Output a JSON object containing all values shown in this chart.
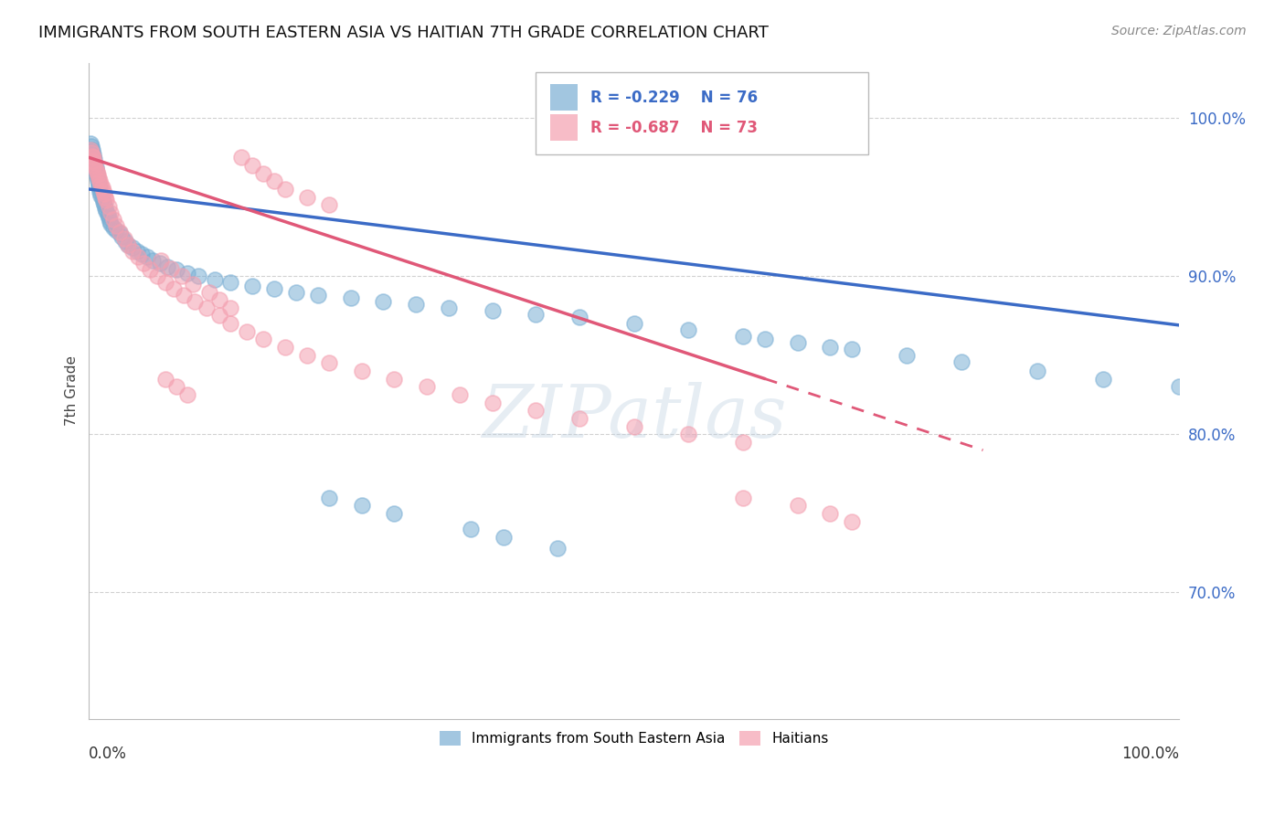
{
  "title": "IMMIGRANTS FROM SOUTH EASTERN ASIA VS HAITIAN 7TH GRADE CORRELATION CHART",
  "source": "Source: ZipAtlas.com",
  "ylabel": "7th Grade",
  "y_tick_labels": [
    "100.0%",
    "90.0%",
    "80.0%",
    "70.0%"
  ],
  "y_tick_values": [
    1.0,
    0.9,
    0.8,
    0.7
  ],
  "legend_blue_label": "Immigrants from South Eastern Asia",
  "legend_pink_label": "Haitians",
  "R_blue": -0.229,
  "N_blue": 76,
  "R_pink": -0.687,
  "N_pink": 73,
  "blue_color": "#7BAFD4",
  "pink_color": "#F4A0B0",
  "blue_line_color": "#3B6BC6",
  "pink_line_color": "#E05878",
  "watermark_text": "ZIPatlas",
  "blue_x": [
    0.001,
    0.002,
    0.003,
    0.003,
    0.004,
    0.004,
    0.005,
    0.005,
    0.005,
    0.006,
    0.006,
    0.007,
    0.007,
    0.008,
    0.008,
    0.009,
    0.009,
    0.01,
    0.01,
    0.011,
    0.012,
    0.013,
    0.014,
    0.015,
    0.016,
    0.017,
    0.018,
    0.019,
    0.02,
    0.022,
    0.025,
    0.028,
    0.03,
    0.033,
    0.036,
    0.04,
    0.044,
    0.048,
    0.053,
    0.058,
    0.065,
    0.072,
    0.08,
    0.09,
    0.1,
    0.115,
    0.13,
    0.15,
    0.17,
    0.19,
    0.21,
    0.24,
    0.27,
    0.3,
    0.33,
    0.37,
    0.41,
    0.45,
    0.5,
    0.55,
    0.6,
    0.65,
    0.7,
    0.75,
    0.8,
    0.87,
    0.93,
    1.0,
    0.62,
    0.68,
    0.22,
    0.25,
    0.28,
    0.35,
    0.38,
    0.43
  ],
  "blue_y": [
    0.984,
    0.982,
    0.98,
    0.978,
    0.977,
    0.975,
    0.974,
    0.972,
    0.97,
    0.969,
    0.967,
    0.965,
    0.963,
    0.962,
    0.96,
    0.958,
    0.957,
    0.955,
    0.953,
    0.951,
    0.949,
    0.947,
    0.945,
    0.943,
    0.941,
    0.939,
    0.937,
    0.935,
    0.933,
    0.931,
    0.929,
    0.927,
    0.925,
    0.922,
    0.92,
    0.918,
    0.916,
    0.914,
    0.912,
    0.91,
    0.908,
    0.906,
    0.904,
    0.902,
    0.9,
    0.898,
    0.896,
    0.894,
    0.892,
    0.89,
    0.888,
    0.886,
    0.884,
    0.882,
    0.88,
    0.878,
    0.876,
    0.874,
    0.87,
    0.866,
    0.862,
    0.858,
    0.854,
    0.85,
    0.846,
    0.84,
    0.835,
    0.83,
    0.86,
    0.855,
    0.76,
    0.755,
    0.75,
    0.74,
    0.735,
    0.728
  ],
  "pink_x": [
    0.001,
    0.002,
    0.003,
    0.004,
    0.004,
    0.005,
    0.005,
    0.006,
    0.007,
    0.008,
    0.009,
    0.01,
    0.011,
    0.012,
    0.013,
    0.014,
    0.015,
    0.016,
    0.018,
    0.02,
    0.022,
    0.025,
    0.028,
    0.032,
    0.036,
    0.04,
    0.045,
    0.05,
    0.056,
    0.063,
    0.07,
    0.078,
    0.087,
    0.097,
    0.108,
    0.12,
    0.13,
    0.145,
    0.16,
    0.18,
    0.2,
    0.22,
    0.25,
    0.28,
    0.31,
    0.34,
    0.37,
    0.41,
    0.45,
    0.5,
    0.55,
    0.6,
    0.066,
    0.075,
    0.085,
    0.095,
    0.11,
    0.12,
    0.13,
    0.14,
    0.15,
    0.16,
    0.17,
    0.18,
    0.2,
    0.22,
    0.07,
    0.08,
    0.09,
    0.6,
    0.65,
    0.68,
    0.7
  ],
  "pink_y": [
    0.98,
    0.978,
    0.976,
    0.975,
    0.973,
    0.972,
    0.97,
    0.968,
    0.966,
    0.964,
    0.962,
    0.96,
    0.958,
    0.956,
    0.954,
    0.952,
    0.95,
    0.948,
    0.944,
    0.94,
    0.936,
    0.932,
    0.928,
    0.924,
    0.92,
    0.916,
    0.912,
    0.908,
    0.904,
    0.9,
    0.896,
    0.892,
    0.888,
    0.884,
    0.88,
    0.875,
    0.87,
    0.865,
    0.86,
    0.855,
    0.85,
    0.845,
    0.84,
    0.835,
    0.83,
    0.825,
    0.82,
    0.815,
    0.81,
    0.805,
    0.8,
    0.795,
    0.91,
    0.905,
    0.9,
    0.895,
    0.89,
    0.885,
    0.88,
    0.975,
    0.97,
    0.965,
    0.96,
    0.955,
    0.95,
    0.945,
    0.835,
    0.83,
    0.825,
    0.76,
    0.755,
    0.75,
    0.745
  ]
}
